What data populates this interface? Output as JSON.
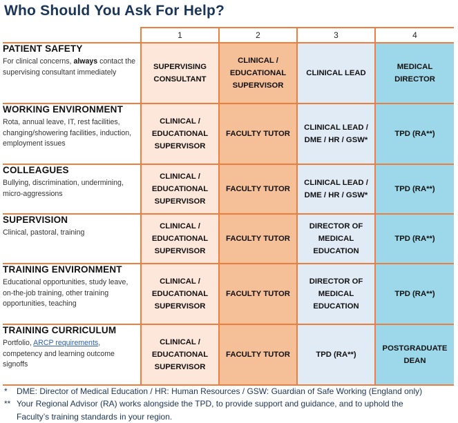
{
  "title": "Who Should You Ask For Help?",
  "columns": [
    "1",
    "2",
    "3",
    "4"
  ],
  "rows": [
    {
      "title": "PATIENT SAFETY",
      "desc_before": "For clinical concerns, ",
      "desc_bold": "always",
      "desc_after": " contact the supervising consultant immediately",
      "c1": "SUPERVISING CONSULTANT",
      "c2": "CLINICAL / EDUCATIONAL SUPERVISOR",
      "c3": "CLINICAL LEAD",
      "c4": "MEDICAL DIRECTOR"
    },
    {
      "title": "WORKING ENVIRONMENT",
      "desc": "Rota, annual leave, IT, rest facilities, changing/showering facilities, induction, employment issues",
      "c1": "CLINICAL / EDUCATIONAL SUPERVISOR",
      "c2": "FACULTY TUTOR",
      "c3": "CLINICAL LEAD / DME / HR / GSW*",
      "c4": "TPD (RA**)"
    },
    {
      "title": "COLLEAGUES",
      "desc": "Bullying, discrimination, undermining, micro-aggressions",
      "c1": "CLINICAL / EDUCATIONAL SUPERVISOR",
      "c2": "FACULTY TUTOR",
      "c3": "CLINICAL LEAD / DME / HR / GSW*",
      "c4": "TPD (RA**)"
    },
    {
      "title": "SUPERVISION",
      "desc": "Clinical, pastoral, training",
      "c1": "CLINICAL / EDUCATIONAL SUPERVISOR",
      "c2": "FACULTY TUTOR",
      "c3": "DIRECTOR OF MEDICAL EDUCATION",
      "c4": "TPD (RA**)"
    },
    {
      "title": "TRAINING ENVIRONMENT",
      "desc": "Educational opportunities, study leave, on-the-job training, other training opportunities, teaching",
      "c1": "CLINICAL / EDUCATIONAL SUPERVISOR",
      "c2": "FACULTY TUTOR",
      "c3": "DIRECTOR OF MEDICAL EDUCATION",
      "c4": "TPD (RA**)"
    },
    {
      "title": "TRAINING CURRICULUM",
      "desc_before": "Portfolio, ",
      "desc_link": "ARCP requirements",
      "desc_after": ", competency and learning outcome signoffs",
      "c1": "CLINICAL / EDUCATIONAL SUPERVISOR",
      "c2": "FACULTY TUTOR",
      "c3": "TPD (RA**)",
      "c4": "POSTGRADUATE DEAN"
    }
  ],
  "footnotes": [
    {
      "mark": "*",
      "lines": [
        "DME: Director of Medical Education / HR: Human Resources / GSW: Guardian of Safe Working (England only)"
      ]
    },
    {
      "mark": "**",
      "lines": [
        "Your Regional Advisor (RA) works alongside the TPD, to provide support and guidance, and to uphold the",
        "Faculty’s training standards in your region."
      ]
    }
  ],
  "colors": {
    "border": "#ee7e3f",
    "col1": "#fde6da",
    "col2": "#f5bf98",
    "col3": "#e1ebf6",
    "col4": "#9dd8ea",
    "title": "#1b3556",
    "link": "#2d5fa8"
  }
}
